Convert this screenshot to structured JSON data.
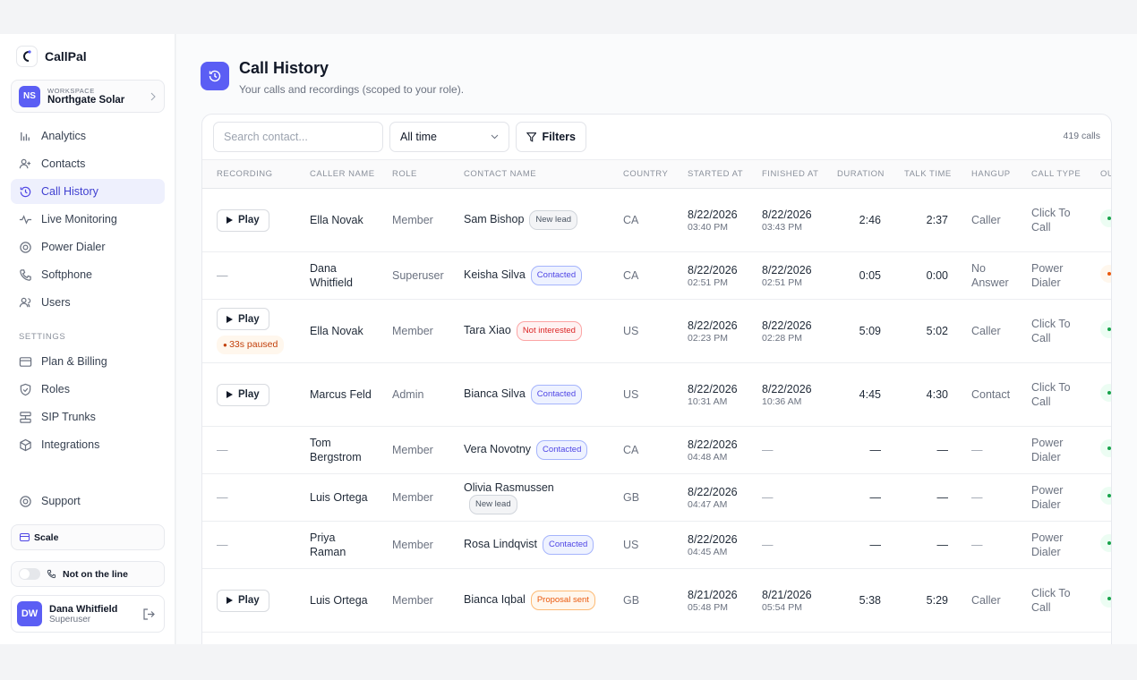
{
  "sidebar": {
    "brand": "CallPal",
    "workspace": {
      "initials": "NS",
      "label": "WORKSPACE",
      "name": "Northgate Solar"
    },
    "nav": [
      {
        "label": "Analytics"
      },
      {
        "label": "Contacts"
      },
      {
        "label": "Call History",
        "active": true
      },
      {
        "label": "Live Monitoring"
      },
      {
        "label": "Power Dialer"
      },
      {
        "label": "Softphone"
      },
      {
        "label": "Users"
      }
    ],
    "settings_label": "SETTINGS",
    "settings": [
      {
        "label": "Plan & Billing"
      },
      {
        "label": "Roles"
      },
      {
        "label": "SIP Trunks"
      },
      {
        "label": "Integrations"
      }
    ],
    "support": "Support",
    "plan": "Scale",
    "status": "Not on the line",
    "user": {
      "initials": "DW",
      "name": "Dana Whitfield",
      "role": "Superuser"
    }
  },
  "header": {
    "title": "Call History",
    "subtitle": "Your calls and recordings (scoped to your role)."
  },
  "toolbar": {
    "search_placeholder": "Search contact...",
    "range": "All time",
    "filters": "Filters",
    "count": "419 calls"
  },
  "table": {
    "columns": [
      "RECORDING",
      "CALLER NAME",
      "ROLE",
      "CONTACT NAME",
      "COUNTRY",
      "STARTED AT",
      "FINISHED AT",
      "DURATION",
      "TALK TIME",
      "HANGUP",
      "CALL TYPE",
      "OUTCOME"
    ],
    "rows": [
      {
        "recording": "Play",
        "caller": "Ella Novak",
        "role": "Member",
        "contact": "Sam Bishop",
        "status": "New lead",
        "country": "CA",
        "started_date": "8/22/2026",
        "started_time": "03:40 PM",
        "finished_date": "8/22/2026",
        "finished_time": "03:43 PM",
        "duration": "2:46",
        "talk_time": "2:37",
        "hangup": "Caller",
        "call_type": "Click To Call"
      },
      {
        "recording": "—",
        "caller": "Dana Whitfield",
        "role": "Superuser",
        "contact": "Keisha Silva",
        "status": "Contacted",
        "country": "CA",
        "started_date": "8/22/2026",
        "started_time": "02:51 PM",
        "finished_date": "8/22/2026",
        "finished_time": "02:51 PM",
        "duration": "0:05",
        "talk_time": "0:00",
        "hangup": "No Answer",
        "call_type": "Power Dialer"
      },
      {
        "recording": "Play",
        "recording_note": "33s paused",
        "caller": "Ella Novak",
        "role": "Member",
        "contact": "Tara Xiao",
        "status": "Not interested",
        "country": "US",
        "started_date": "8/22/2026",
        "started_time": "02:23 PM",
        "finished_date": "8/22/2026",
        "finished_time": "02:28 PM",
        "duration": "5:09",
        "talk_time": "5:02",
        "hangup": "Caller",
        "call_type": "Click To Call"
      },
      {
        "recording": "Play",
        "caller": "Marcus Feld",
        "role": "Admin",
        "contact": "Bianca Silva",
        "status": "Contacted",
        "country": "US",
        "started_date": "8/22/2026",
        "started_time": "10:31 AM",
        "finished_date": "8/22/2026",
        "finished_time": "10:36 AM",
        "duration": "4:45",
        "talk_time": "4:30",
        "hangup": "Contact",
        "call_type": "Click To Call"
      },
      {
        "recording": "—",
        "caller": "Tom Bergstrom",
        "role": "Member",
        "contact": "Vera Novotny",
        "status": "Contacted",
        "country": "CA",
        "started_date": "8/22/2026",
        "started_time": "04:48 AM",
        "finished_date": "—",
        "duration": "—",
        "talk_time": "—",
        "hangup": "—",
        "call_type": "Power Dialer"
      },
      {
        "recording": "—",
        "caller": "Luis Ortega",
        "role": "Member",
        "contact": "Olivia Rasmussen",
        "status": "New lead",
        "country": "GB",
        "started_date": "8/22/2026",
        "started_time": "04:47 AM",
        "finished_date": "—",
        "duration": "—",
        "talk_time": "—",
        "hangup": "—",
        "call_type": "Power Dialer"
      },
      {
        "recording": "—",
        "caller": "Priya Raman",
        "role": "Member",
        "contact": "Rosa Lindqvist",
        "status": "Contacted",
        "country": "US",
        "started_date": "8/22/2026",
        "started_time": "04:45 AM",
        "finished_date": "—",
        "duration": "—",
        "talk_time": "—",
        "hangup": "—",
        "call_type": "Power Dialer"
      },
      {
        "recording": "Play",
        "caller": "Luis Ortega",
        "role": "Member",
        "contact": "Bianca Iqbal",
        "status": "Proposal sent",
        "country": "GB",
        "started_date": "8/21/2026",
        "started_time": "05:48 PM",
        "finished_date": "8/21/2026",
        "finished_time": "05:54 PM",
        "duration": "5:38",
        "talk_time": "5:29",
        "hangup": "Caller",
        "call_type": "Click To Call"
      }
    ]
  }
}
